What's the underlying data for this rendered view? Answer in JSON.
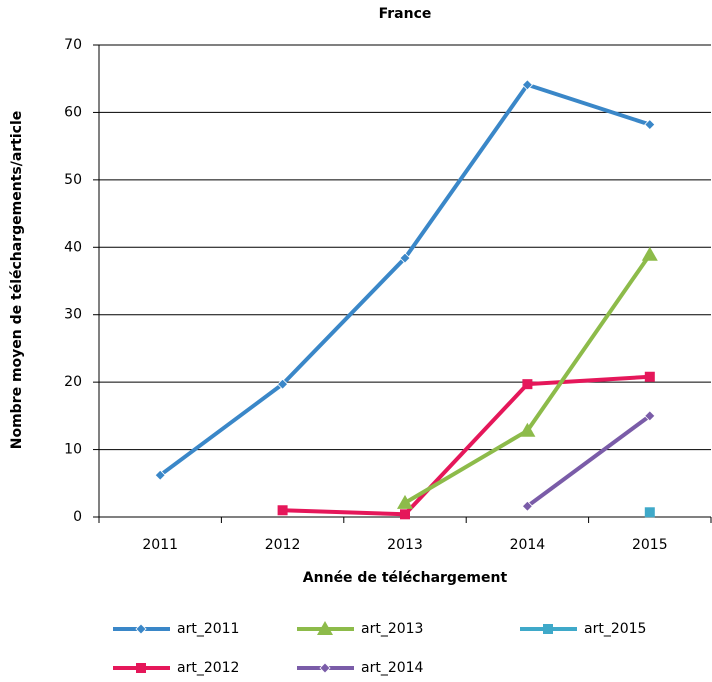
{
  "chart_data": {
    "type": "line",
    "title": "France",
    "x_label": "Année de téléchargement",
    "y_label": "Nombre moyen de téléchargements/article",
    "categories": [
      "2011",
      "2012",
      "2013",
      "2014",
      "2015"
    ],
    "series": [
      {
        "name": "art_2011",
        "color": "#3a87c8",
        "marker": "diamond",
        "values": [
          6.2,
          19.7,
          38.4,
          64.1,
          58.2
        ]
      },
      {
        "name": "art_2012",
        "color": "#e5175a",
        "marker": "square",
        "values": [
          null,
          1.0,
          0.4,
          19.7,
          20.8
        ]
      },
      {
        "name": "art_2013",
        "color": "#8dbb4a",
        "marker": "triangle",
        "values": [
          null,
          null,
          2.1,
          12.8,
          38.9
        ]
      },
      {
        "name": "art_2014",
        "color": "#7a5ca8",
        "marker": "diamond",
        "values": [
          null,
          null,
          null,
          1.6,
          15.0
        ]
      },
      {
        "name": "art_2015",
        "color": "#3fa9c9",
        "marker": "square",
        "values": [
          null,
          null,
          null,
          null,
          0.7
        ]
      }
    ],
    "ylim": [
      0,
      70
    ],
    "yticks": [
      0,
      10,
      20,
      30,
      40,
      50,
      60,
      70
    ],
    "grid": true
  }
}
